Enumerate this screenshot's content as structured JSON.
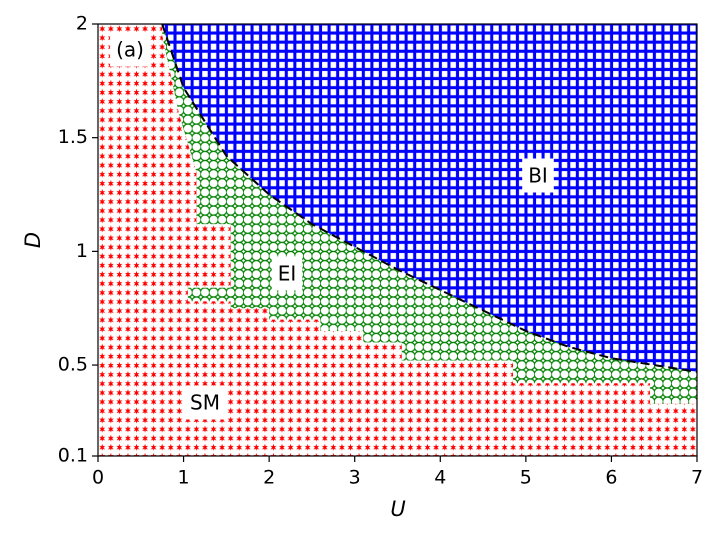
{
  "chart_data": {
    "type": "phase",
    "xlabel": "U",
    "ylabel": "D",
    "panel_label": "(a)",
    "xlim": [
      0,
      7
    ],
    "ylim": [
      0.1,
      2
    ],
    "xticks": [
      0,
      1,
      2,
      3,
      4,
      5,
      6,
      7
    ],
    "yticks": [
      0.1,
      0.5,
      1,
      1.5,
      2
    ],
    "series": [
      {
        "name": "SM",
        "color": "#ff0000",
        "x": [
          0,
          7,
          7,
          0
        ],
        "y": [
          0.1,
          0.1,
          2,
          2
        ]
      },
      {
        "name": "EI",
        "color": "#008000",
        "x": [
          0.75,
          1.0,
          1.5,
          2.0,
          2.5,
          3.0,
          3.5,
          4.0,
          4.5,
          5.0,
          5.5,
          6.0,
          6.5,
          7.0,
          7.0,
          6.45,
          6.45,
          4.85,
          4.85,
          3.55,
          3.55,
          3.1,
          3.1,
          2.6,
          2.6,
          2.0,
          2.0,
          1.55,
          1.55,
          1.05,
          1.05,
          1.55,
          1.55,
          1.15,
          1.15,
          0.95,
          0.75
        ],
        "y": [
          2.0,
          1.72,
          1.42,
          1.25,
          1.12,
          1.02,
          0.92,
          0.83,
          0.74,
          0.65,
          0.58,
          0.53,
          0.5,
          0.47,
          0.33,
          0.33,
          0.42,
          0.42,
          0.52,
          0.52,
          0.6,
          0.6,
          0.65,
          0.65,
          0.7,
          0.7,
          0.75,
          0.75,
          0.78,
          0.78,
          0.84,
          0.84,
          1.12,
          1.12,
          1.35,
          1.6,
          1.95
        ]
      },
      {
        "name": "BI",
        "color": "#0000ff",
        "x": [
          0.75,
          1.0,
          1.5,
          2.0,
          2.5,
          3.0,
          3.5,
          4.0,
          4.5,
          5.0,
          5.5,
          6.0,
          6.5,
          7.0,
          7.0
        ],
        "y": [
          2.0,
          1.72,
          1.42,
          1.25,
          1.12,
          1.02,
          0.92,
          0.83,
          0.74,
          0.65,
          0.58,
          0.53,
          0.5,
          0.47,
          2.0
        ]
      }
    ],
    "boundary": {
      "color": "#000000",
      "x": [
        0.75,
        1.0,
        1.5,
        2.0,
        2.5,
        3.0,
        3.5,
        4.0,
        4.5,
        5.0,
        5.5,
        6.0,
        6.5,
        7.0
      ],
      "y": [
        2.0,
        1.72,
        1.42,
        1.25,
        1.12,
        1.02,
        0.92,
        0.83,
        0.74,
        0.65,
        0.58,
        0.53,
        0.5,
        0.47
      ]
    }
  }
}
